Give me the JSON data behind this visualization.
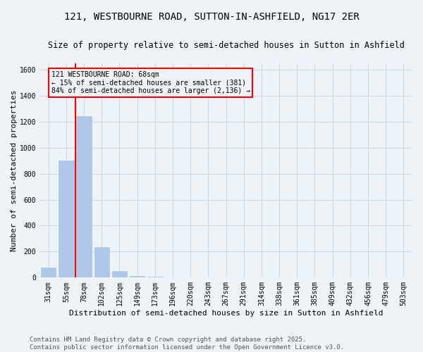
{
  "title_line1": "121, WESTBOURNE ROAD, SUTTON-IN-ASHFIELD, NG17 2ER",
  "title_line2": "Size of property relative to semi-detached houses in Sutton in Ashfield",
  "xlabel": "Distribution of semi-detached houses by size in Sutton in Ashfield",
  "ylabel": "Number of semi-detached properties",
  "categories": [
    "31sqm",
    "55sqm",
    "78sqm",
    "102sqm",
    "125sqm",
    "149sqm",
    "173sqm",
    "196sqm",
    "220sqm",
    "243sqm",
    "267sqm",
    "291sqm",
    "314sqm",
    "338sqm",
    "361sqm",
    "385sqm",
    "409sqm",
    "432sqm",
    "456sqm",
    "479sqm",
    "503sqm"
  ],
  "values": [
    80,
    900,
    1240,
    235,
    50,
    15,
    5,
    2,
    1,
    0,
    0,
    0,
    0,
    0,
    0,
    0,
    0,
    0,
    0,
    0,
    0
  ],
  "bar_color": "#aec6e8",
  "bar_edge_color": "#aec6e8",
  "grid_color": "#c8d8e8",
  "bg_color": "#eef3f8",
  "vline_color": "red",
  "annotation_text": "121 WESTBOURNE ROAD: 68sqm\n← 15% of semi-detached houses are smaller (381)\n84% of semi-detached houses are larger (2,136) →",
  "annotation_box_color": "red",
  "ylim": [
    0,
    1650
  ],
  "yticks": [
    0,
    200,
    400,
    600,
    800,
    1000,
    1200,
    1400,
    1600
  ],
  "footer_line1": "Contains HM Land Registry data © Crown copyright and database right 2025.",
  "footer_line2": "Contains public sector information licensed under the Open Government Licence v3.0.",
  "title_fontsize": 10,
  "subtitle_fontsize": 8.5,
  "label_fontsize": 8,
  "tick_fontsize": 7,
  "annot_fontsize": 7,
  "footer_fontsize": 6.5
}
